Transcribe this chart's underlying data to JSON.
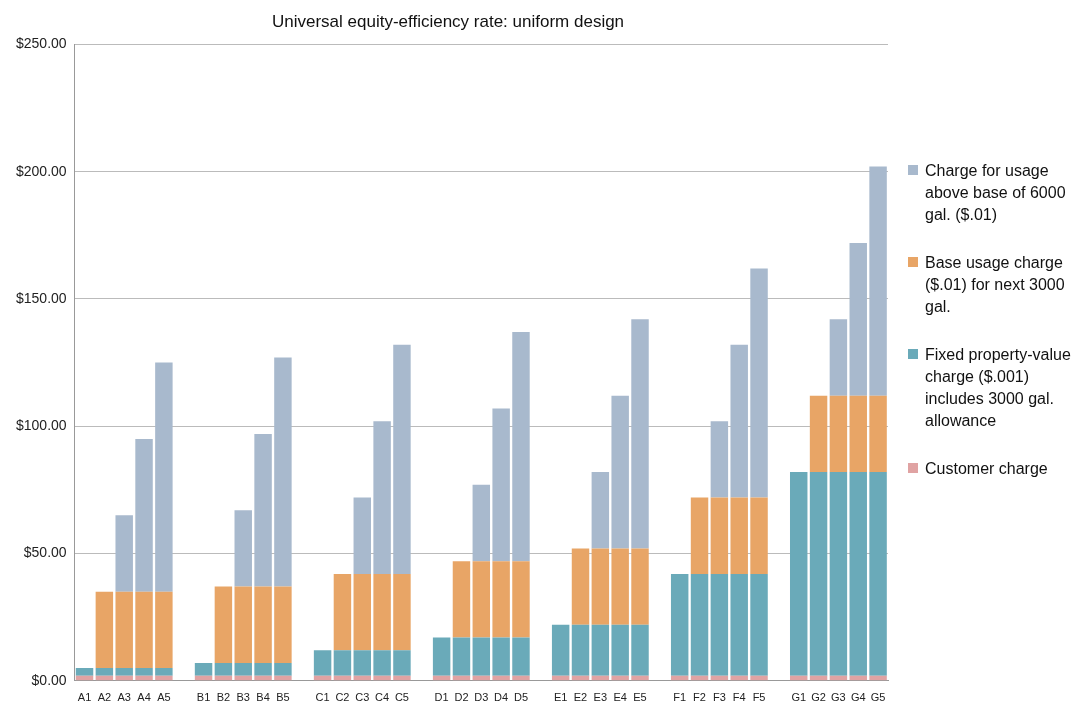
{
  "chart_data": {
    "type": "bar",
    "title": "Universal equity-efficiency rate: uniform design",
    "stacked": true,
    "legend": "right",
    "grid": "y",
    "categories": [
      "A1",
      "A2",
      "A3",
      "A4",
      "A5",
      null,
      "B1",
      "B2",
      "B3",
      "B4",
      "B5",
      null,
      "C1",
      "C2",
      "C3",
      "C4",
      "C5",
      null,
      "D1",
      "D2",
      "D3",
      "D4",
      "D5",
      null,
      "E1",
      "E2",
      "E3",
      "E4",
      "E5",
      null,
      "F1",
      "F2",
      "F3",
      "F4",
      "F5",
      null,
      "G1",
      "G2",
      "G3",
      "G4",
      "G5"
    ],
    "ylim": [
      0,
      250
    ],
    "yticks": [
      {
        "value": 0,
        "label": "$0.00"
      },
      {
        "value": 50,
        "label": "$50.00"
      },
      {
        "value": 100,
        "label": "$100.00"
      },
      {
        "value": 150,
        "label": "$150.00"
      },
      {
        "value": 200,
        "label": "$200.00"
      },
      {
        "value": 250,
        "label": "$250.00"
      }
    ],
    "series": [
      {
        "name": "Customer charge",
        "color": "#e0a3a3",
        "values": [
          2,
          2,
          2,
          2,
          2,
          null,
          2,
          2,
          2,
          2,
          2,
          null,
          2,
          2,
          2,
          2,
          2,
          null,
          2,
          2,
          2,
          2,
          2,
          null,
          2,
          2,
          2,
          2,
          2,
          null,
          2,
          2,
          2,
          2,
          2,
          null,
          2,
          2,
          2,
          2,
          2
        ]
      },
      {
        "name": "Fixed property-value charge ($.001) includes 3000 gal. allowance",
        "color": "#6aaab9",
        "values": [
          3,
          3,
          3,
          3,
          3,
          null,
          5,
          5,
          5,
          5,
          5,
          null,
          10,
          10,
          10,
          10,
          10,
          null,
          15,
          15,
          15,
          15,
          15,
          null,
          20,
          20,
          20,
          20,
          20,
          null,
          40,
          40,
          40,
          40,
          40,
          null,
          80,
          80,
          80,
          80,
          80
        ]
      },
      {
        "name": "Base usage charge ($.01) for next 3000 gal.",
        "color": "#e8a566",
        "values": [
          0,
          30,
          30,
          30,
          30,
          null,
          0,
          30,
          30,
          30,
          30,
          null,
          0,
          30,
          30,
          30,
          30,
          null,
          0,
          30,
          30,
          30,
          30,
          null,
          0,
          30,
          30,
          30,
          30,
          null,
          0,
          30,
          30,
          30,
          30,
          null,
          0,
          30,
          30,
          30,
          30
        ]
      },
      {
        "name": "Charge for usage above base of 6000 gal. ($.01)",
        "color": "#a8b9cd",
        "values": [
          0,
          0,
          30,
          60,
          90,
          null,
          0,
          0,
          30,
          60,
          90,
          null,
          0,
          0,
          30,
          60,
          90,
          null,
          0,
          0,
          30,
          60,
          90,
          null,
          0,
          0,
          30,
          60,
          90,
          null,
          0,
          0,
          30,
          60,
          90,
          null,
          0,
          0,
          30,
          60,
          90
        ]
      }
    ]
  }
}
